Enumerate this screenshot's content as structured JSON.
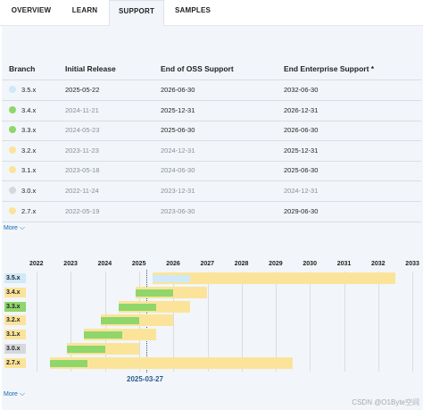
{
  "tabs": [
    "OVERVIEW",
    "LEARN",
    "SUPPORT",
    "SAMPLES"
  ],
  "table": {
    "headers": [
      "Branch",
      "Initial Release",
      "End of OSS Support",
      "End Enterprise Support *"
    ],
    "rows": [
      {
        "branch": "3.5.x",
        "initial": "2025-05-22",
        "oss": "2026-06-30",
        "ent": "2032-06-30",
        "color": "#cfe9f8",
        "dim_initial": false,
        "dim_oss": false,
        "dim_ent": false
      },
      {
        "branch": "3.4.x",
        "initial": "2024-11-21",
        "oss": "2025-12-31",
        "ent": "2026-12-31",
        "color": "#8fd66b",
        "dim_initial": true,
        "dim_oss": false,
        "dim_ent": false
      },
      {
        "branch": "3.3.x",
        "initial": "2024-05-23",
        "oss": "2025-06-30",
        "ent": "2026-06-30",
        "color": "#8fd66b",
        "dim_initial": true,
        "dim_oss": false,
        "dim_ent": false
      },
      {
        "branch": "3.2.x",
        "initial": "2023-11-23",
        "oss": "2024-12-31",
        "ent": "2025-12-31",
        "color": "#fbe49a",
        "dim_initial": true,
        "dim_oss": true,
        "dim_ent": false
      },
      {
        "branch": "3.1.x",
        "initial": "2023-05-18",
        "oss": "2024-06-30",
        "ent": "2025-06-30",
        "color": "#fbe49a",
        "dim_initial": true,
        "dim_oss": true,
        "dim_ent": false
      },
      {
        "branch": "3.0.x",
        "initial": "2022-11-24",
        "oss": "2023-12-31",
        "ent": "2024-12-31",
        "color": "#d6d9dc",
        "dim_initial": true,
        "dim_oss": true,
        "dim_ent": true
      },
      {
        "branch": "2.7.x",
        "initial": "2022-05-19",
        "oss": "2023-06-30",
        "ent": "2029-06-30",
        "color": "#fbe49a",
        "dim_initial": true,
        "dim_oss": true,
        "dim_ent": false
      }
    ]
  },
  "more_label": "More",
  "timeline": {
    "years": [
      "2022",
      "2023",
      "2024",
      "2025",
      "2026",
      "2027",
      "2028",
      "2029",
      "2030",
      "2031",
      "2032",
      "2033"
    ],
    "today_label": "2025-03-27",
    "today": 2025.24,
    "labels": [
      {
        "text": "3.5.x",
        "color": "#cfe9f8"
      },
      {
        "text": "3.4.x",
        "color": "#fbe49a"
      },
      {
        "text": "3.3.x",
        "color": "#8fd66b"
      },
      {
        "text": "3.2.x",
        "color": "#fbe49a"
      },
      {
        "text": "3.1.x",
        "color": "#fbe49a"
      },
      {
        "text": "3.0.x",
        "color": "#d6d9dc"
      },
      {
        "text": "2.7.x",
        "color": "#fbe49a"
      }
    ],
    "bars": [
      {
        "start": 2025.39,
        "oss": 2026.5,
        "end": 2032.5,
        "oss_color": "#cfe9f8",
        "ent_color": "#fbe49a"
      },
      {
        "start": 2024.89,
        "oss": 2026.0,
        "end": 2027.0,
        "oss_color": "#8fd66b",
        "ent_color": "#fbe49a"
      },
      {
        "start": 2024.39,
        "oss": 2025.5,
        "end": 2026.5,
        "oss_color": "#8fd66b",
        "ent_color": "#fbe49a"
      },
      {
        "start": 2023.89,
        "oss": 2025.0,
        "end": 2026.0,
        "oss_color": "#8fd66b",
        "ent_color": "#fbe49a"
      },
      {
        "start": 2023.38,
        "oss": 2024.5,
        "end": 2025.5,
        "oss_color": "#8fd66b",
        "ent_color": "#fbe49a"
      },
      {
        "start": 2022.9,
        "oss": 2024.0,
        "end": 2025.0,
        "oss_color": "#8fd66b",
        "ent_color": "#fbe49a"
      },
      {
        "start": 2022.38,
        "oss": 2023.5,
        "end": 2029.5,
        "oss_color": "#8fd66b",
        "ent_color": "#fbe49a"
      }
    ]
  },
  "watermark": "CSDN @O1Byte空间"
}
